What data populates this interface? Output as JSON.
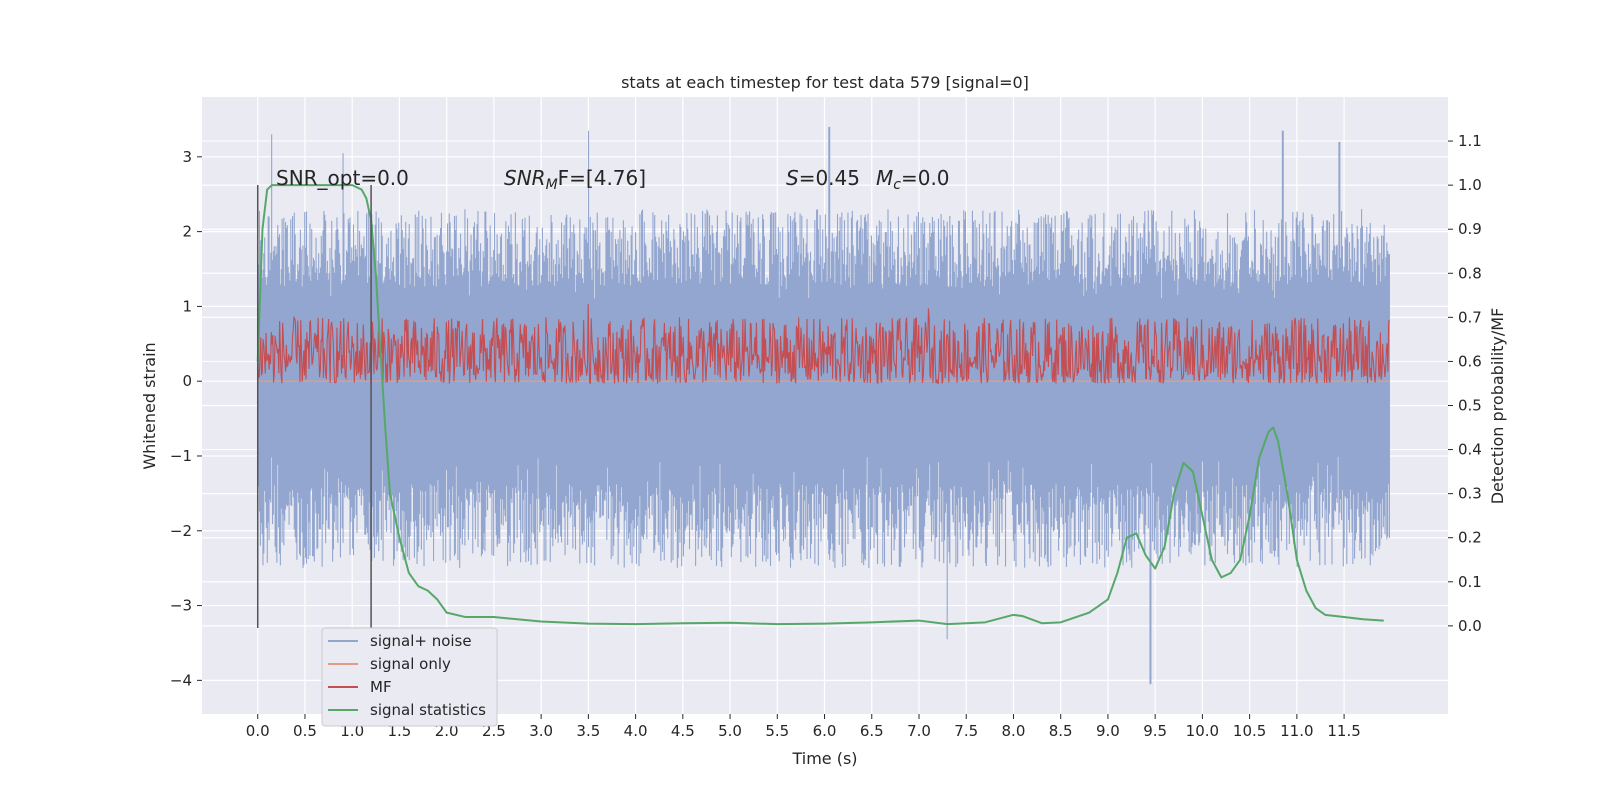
{
  "chart_data": {
    "type": "line",
    "title": "stats at each timestep for test data 579 [signal=0]",
    "xlabel": "Time (s)",
    "ylabel": "Whitened strain",
    "y2label": "Detection probability/MF",
    "xlim": [
      -0.59,
      12.6
    ],
    "ylim": [
      -4.45,
      3.8
    ],
    "y2lim": [
      -0.2,
      1.2
    ],
    "xticks": [
      0.0,
      0.5,
      1.0,
      1.5,
      2.0,
      2.5,
      3.0,
      3.5,
      4.0,
      4.5,
      5.0,
      5.5,
      6.0,
      6.5,
      7.0,
      7.5,
      8.0,
      8.5,
      9.0,
      9.5,
      10.0,
      10.5,
      11.0,
      11.5
    ],
    "xtick_labels": [
      "0.0",
      "0.5",
      "1.0",
      "1.5",
      "2.0",
      "2.5",
      "3.0",
      "3.5",
      "4.0",
      "4.5",
      "5.0",
      "5.5",
      "6.0",
      "6.5",
      "7.0",
      "7.5",
      "8.0",
      "8.5",
      "9.0",
      "9.5",
      "10.0",
      "10.5",
      "11.0",
      "11.5"
    ],
    "yticks": [
      3,
      2,
      1,
      0,
      -1,
      -2,
      -3,
      -4
    ],
    "ytick_labels": [
      "3",
      "2",
      "1",
      "0",
      "−1",
      "−2",
      "−3",
      "−4"
    ],
    "y2ticks": [
      1.1,
      1.0,
      0.9,
      0.8,
      0.7,
      0.6,
      0.5,
      0.4,
      0.3,
      0.2,
      0.1,
      0.0
    ],
    "y2tick_labels": [
      "1.1",
      "1.0",
      "0.9",
      "0.8",
      "0.7",
      "0.6",
      "0.5",
      "0.4",
      "0.3",
      "0.2",
      "0.1",
      "0.0"
    ],
    "grid": true,
    "legend_position": "lower-left",
    "annotations": {
      "snr_opt": "SNR_opt=0.0",
      "snr_mf_prefix": "SNR",
      "snr_mf_sub": "M",
      "snr_mf_suffix": "F=[4.76]",
      "s_label": "S",
      "s_value": "=0.45",
      "mc_label": "M",
      "mc_sub": "c",
      "mc_value": "=0.0"
    },
    "vlines": [
      0.0,
      1.2
    ],
    "series": [
      {
        "name": "signal+ noise",
        "color": "#92a6cf",
        "axis": "left",
        "x_range": [
          0.0,
          11.98
        ],
        "envelope_range": [
          -2.5,
          2.3
        ],
        "peak_x": [
          0.15,
          0.9,
          3.5,
          6.05,
          7.3,
          9.45,
          10.85,
          11.45
        ],
        "peak_y": [
          3.3,
          3.05,
          3.35,
          3.4,
          -3.45,
          -4.05,
          3.35,
          3.2
        ]
      },
      {
        "name": "signal only",
        "color": "#e59b82",
        "axis": "left",
        "x": [
          0.0,
          11.98
        ],
        "y": [
          0.0,
          0.0
        ]
      },
      {
        "name": "MF",
        "color": "#c44e52",
        "axis": "right",
        "x_range": [
          0.0,
          11.98
        ],
        "band": [
          0.55,
          0.7
        ],
        "peak_x": [
          3.5,
          7.1
        ],
        "peak_y": [
          0.73,
          0.72
        ]
      },
      {
        "name": "signal statistics",
        "color": "#55a868",
        "axis": "right",
        "x": [
          0.0,
          0.05,
          0.1,
          0.15,
          0.2,
          0.4,
          0.6,
          0.8,
          1.0,
          1.1,
          1.15,
          1.2,
          1.25,
          1.3,
          1.35,
          1.4,
          1.5,
          1.6,
          1.7,
          1.8,
          1.9,
          2.0,
          2.2,
          2.5,
          3.0,
          3.5,
          4.0,
          4.5,
          5.0,
          5.5,
          6.0,
          6.5,
          7.0,
          7.3,
          7.7,
          8.0,
          8.1,
          8.3,
          8.5,
          8.8,
          9.0,
          9.1,
          9.2,
          9.3,
          9.4,
          9.5,
          9.6,
          9.7,
          9.8,
          9.9,
          10.0,
          10.1,
          10.2,
          10.3,
          10.4,
          10.5,
          10.6,
          10.7,
          10.75,
          10.8,
          10.9,
          11.0,
          11.1,
          11.2,
          11.3,
          11.5,
          11.7,
          11.92
        ],
        "y": [
          0.6,
          0.9,
          0.99,
          1.0,
          1.0,
          1.0,
          1.0,
          1.0,
          1.0,
          0.99,
          0.97,
          0.92,
          0.8,
          0.62,
          0.45,
          0.3,
          0.2,
          0.12,
          0.09,
          0.08,
          0.06,
          0.03,
          0.02,
          0.02,
          0.01,
          0.005,
          0.004,
          0.006,
          0.007,
          0.004,
          0.005,
          0.008,
          0.012,
          0.004,
          0.008,
          0.025,
          0.022,
          0.006,
          0.008,
          0.03,
          0.06,
          0.12,
          0.2,
          0.21,
          0.16,
          0.13,
          0.18,
          0.3,
          0.37,
          0.35,
          0.25,
          0.15,
          0.11,
          0.12,
          0.15,
          0.25,
          0.38,
          0.44,
          0.45,
          0.42,
          0.3,
          0.15,
          0.08,
          0.04,
          0.025,
          0.02,
          0.015,
          0.012
        ]
      }
    ]
  }
}
